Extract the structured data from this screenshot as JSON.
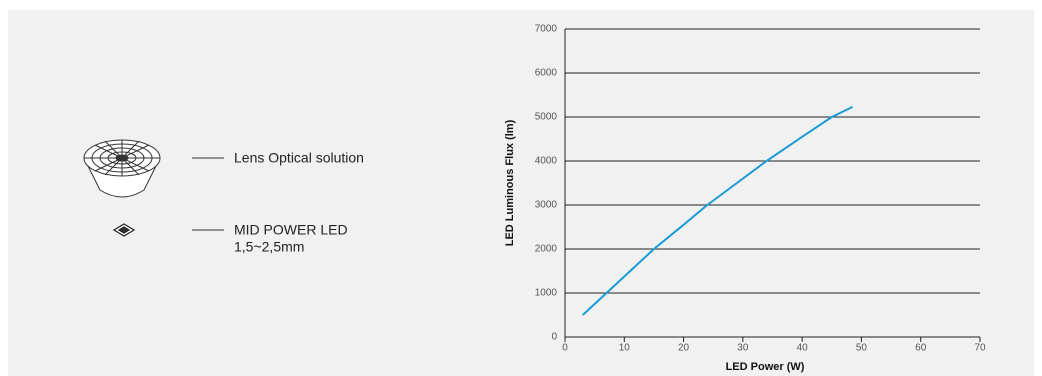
{
  "components": [
    {
      "label": "Lens Optical solution"
    },
    {
      "label": "MID POWER LED",
      "detail": "1,5~2,5mm"
    }
  ],
  "chart_data": {
    "type": "line",
    "xlabel": "LED Power (W)",
    "ylabel": "LED Luminous Flux (lm)",
    "x": [
      3,
      7,
      11,
      15,
      20,
      24,
      29,
      34,
      40,
      45,
      48.5
    ],
    "values": [
      500,
      1000,
      1500,
      2000,
      2550,
      3000,
      3500,
      4000,
      4550,
      5000,
      5230
    ],
    "color": "#1a9ad6",
    "xlim": [
      0,
      70
    ],
    "xticks": [
      0,
      10,
      20,
      30,
      40,
      50,
      60,
      70
    ],
    "ylim": [
      0,
      7000
    ],
    "yticks": [
      0,
      1000,
      2000,
      3000,
      4000,
      5000,
      6000,
      7000
    ],
    "grid": true
  }
}
